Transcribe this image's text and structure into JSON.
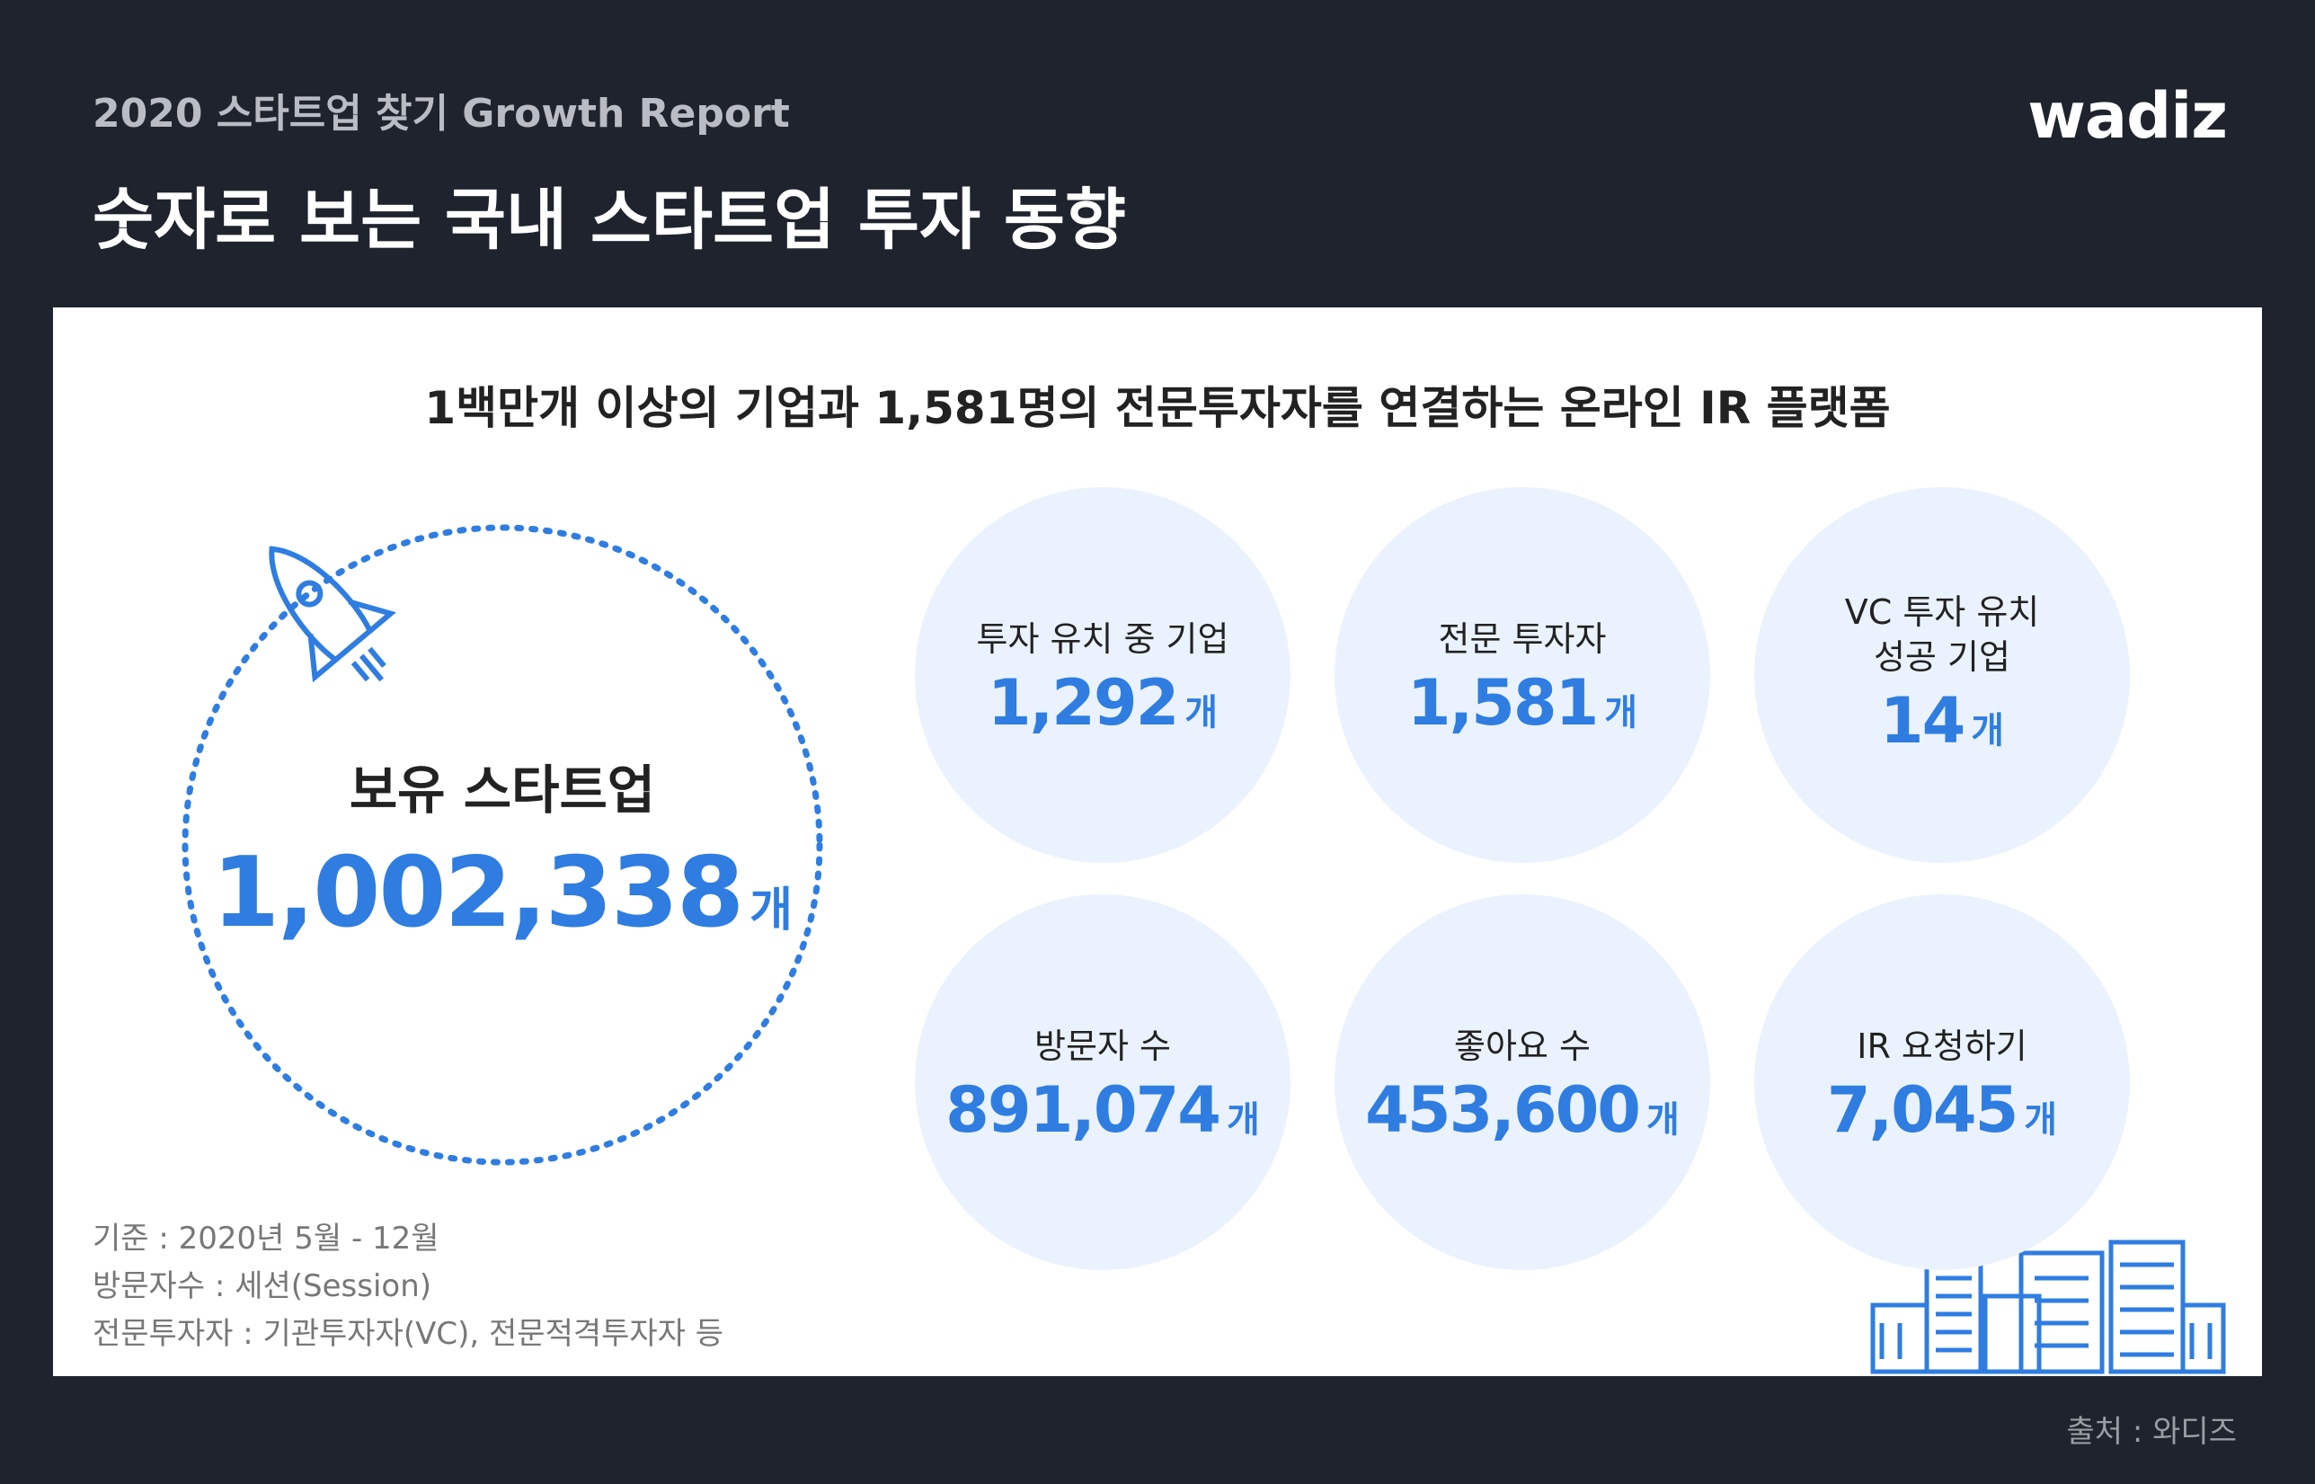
{
  "header": {
    "subtitle": "2020 스타트업 찾기 Growth Report",
    "title": "숫자로 보는 국내 스타트업 투자 동향",
    "logo": "wadiz"
  },
  "headline": "1백만개 이상의 기업과 1,581명의 전문투자자를 연결하는 온라인 IR 플랫폼",
  "main_stat": {
    "label": "보유 스타트업",
    "value": "1,002,338",
    "unit": "개"
  },
  "stats": [
    {
      "label": "투자 유치 중 기업",
      "value": "1,292",
      "unit": "개"
    },
    {
      "label": "전문 투자자",
      "value": "1,581",
      "unit": "개"
    },
    {
      "label": "VC 투자 유치\n성공 기업",
      "value": "14",
      "unit": "개"
    },
    {
      "label": "방문자 수",
      "value": "891,074",
      "unit": "개"
    },
    {
      "label": "좋아요 수",
      "value": "453,600",
      "unit": "개"
    },
    {
      "label": "IR 요청하기",
      "value": "7,045",
      "unit": "개"
    }
  ],
  "notes": [
    "기준 : 2020년 5월 - 12월",
    "방문자수 : 세션(Session)",
    "전문투자자 : 기관투자자(VC), 전문적격투자자 등"
  ],
  "source": "출처 : 와디즈"
}
